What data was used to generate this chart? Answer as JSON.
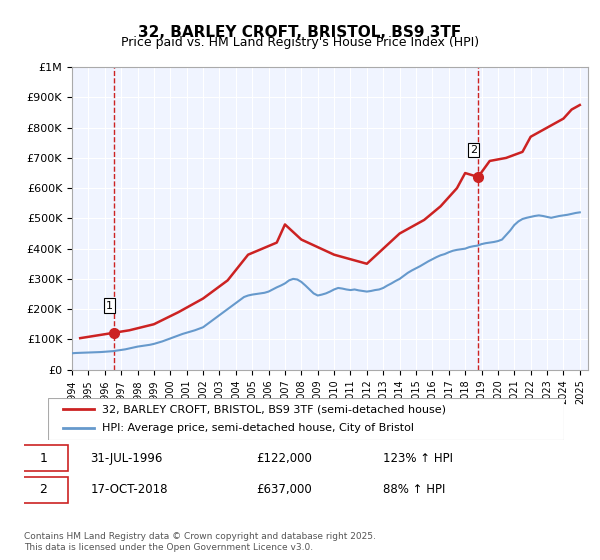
{
  "title": "32, BARLEY CROFT, BRISTOL, BS9 3TF",
  "subtitle": "Price paid vs. HM Land Registry's House Price Index (HPI)",
  "ylabel": "",
  "ylim": [
    0,
    1000000
  ],
  "yticks": [
    0,
    100000,
    200000,
    300000,
    400000,
    500000,
    600000,
    700000,
    800000,
    900000,
    1000000
  ],
  "ytick_labels": [
    "£0",
    "£100K",
    "£200K",
    "£300K",
    "£400K",
    "£500K",
    "£600K",
    "£700K",
    "£800K",
    "£900K",
    "£1M"
  ],
  "xlim_start": 1994.0,
  "xlim_end": 2025.5,
  "xticks": [
    1994,
    1995,
    1996,
    1997,
    1998,
    1999,
    2000,
    2001,
    2002,
    2003,
    2004,
    2005,
    2006,
    2007,
    2008,
    2009,
    2010,
    2011,
    2012,
    2013,
    2014,
    2015,
    2016,
    2017,
    2018,
    2019,
    2020,
    2021,
    2022,
    2023,
    2024,
    2025
  ],
  "hpi_color": "#6699cc",
  "price_color": "#cc2222",
  "marker_color": "#cc2222",
  "vline_color": "#cc2222",
  "background_color": "#f0f4ff",
  "legend_label_price": "32, BARLEY CROFT, BRISTOL, BS9 3TF (semi-detached house)",
  "legend_label_hpi": "HPI: Average price, semi-detached house, City of Bristol",
  "annotation1_label": "1",
  "annotation1_date": "31-JUL-1996",
  "annotation1_price": "£122,000",
  "annotation1_hpi": "123% ↑ HPI",
  "annotation1_year": 1996.58,
  "annotation1_value": 122000,
  "annotation2_label": "2",
  "annotation2_date": "17-OCT-2018",
  "annotation2_price": "£637,000",
  "annotation2_hpi": "88% ↑ HPI",
  "annotation2_year": 2018.79,
  "annotation2_value": 637000,
  "footnote": "Contains HM Land Registry data © Crown copyright and database right 2025.\nThis data is licensed under the Open Government Licence v3.0.",
  "hpi_data": {
    "years": [
      1994.0,
      1994.25,
      1994.5,
      1994.75,
      1995.0,
      1995.25,
      1995.5,
      1995.75,
      1996.0,
      1996.25,
      1996.5,
      1996.75,
      1997.0,
      1997.25,
      1997.5,
      1997.75,
      1998.0,
      1998.25,
      1998.5,
      1998.75,
      1999.0,
      1999.25,
      1999.5,
      1999.75,
      2000.0,
      2000.25,
      2000.5,
      2000.75,
      2001.0,
      2001.25,
      2001.5,
      2001.75,
      2002.0,
      2002.25,
      2002.5,
      2002.75,
      2003.0,
      2003.25,
      2003.5,
      2003.75,
      2004.0,
      2004.25,
      2004.5,
      2004.75,
      2005.0,
      2005.25,
      2005.5,
      2005.75,
      2006.0,
      2006.25,
      2006.5,
      2006.75,
      2007.0,
      2007.25,
      2007.5,
      2007.75,
      2008.0,
      2008.25,
      2008.5,
      2008.75,
      2009.0,
      2009.25,
      2009.5,
      2009.75,
      2010.0,
      2010.25,
      2010.5,
      2010.75,
      2011.0,
      2011.25,
      2011.5,
      2011.75,
      2012.0,
      2012.25,
      2012.5,
      2012.75,
      2013.0,
      2013.25,
      2013.5,
      2013.75,
      2014.0,
      2014.25,
      2014.5,
      2014.75,
      2015.0,
      2015.25,
      2015.5,
      2015.75,
      2016.0,
      2016.25,
      2016.5,
      2016.75,
      2017.0,
      2017.25,
      2017.5,
      2017.75,
      2018.0,
      2018.25,
      2018.5,
      2018.75,
      2019.0,
      2019.25,
      2019.5,
      2019.75,
      2020.0,
      2020.25,
      2020.5,
      2020.75,
      2021.0,
      2021.25,
      2021.5,
      2021.75,
      2022.0,
      2022.25,
      2022.5,
      2022.75,
      2023.0,
      2023.25,
      2023.5,
      2023.75,
      2024.0,
      2024.25,
      2024.5,
      2024.75,
      2025.0
    ],
    "values": [
      54000,
      55000,
      55500,
      56000,
      56500,
      57000,
      57500,
      58000,
      59000,
      60000,
      61000,
      63000,
      65000,
      67000,
      70000,
      73000,
      76000,
      78000,
      80000,
      82000,
      85000,
      89000,
      93000,
      98000,
      103000,
      108000,
      113000,
      118000,
      122000,
      126000,
      130000,
      135000,
      140000,
      150000,
      160000,
      170000,
      180000,
      190000,
      200000,
      210000,
      220000,
      230000,
      240000,
      245000,
      248000,
      250000,
      252000,
      254000,
      258000,
      265000,
      272000,
      278000,
      285000,
      295000,
      300000,
      298000,
      290000,
      278000,
      265000,
      252000,
      245000,
      248000,
      252000,
      258000,
      265000,
      270000,
      268000,
      265000,
      263000,
      265000,
      262000,
      260000,
      258000,
      260000,
      263000,
      265000,
      270000,
      278000,
      285000,
      293000,
      300000,
      310000,
      320000,
      328000,
      335000,
      342000,
      350000,
      358000,
      365000,
      372000,
      378000,
      382000,
      388000,
      393000,
      396000,
      398000,
      400000,
      405000,
      408000,
      410000,
      415000,
      418000,
      420000,
      422000,
      425000,
      430000,
      445000,
      460000,
      478000,
      490000,
      498000,
      502000,
      505000,
      508000,
      510000,
      508000,
      505000,
      502000,
      505000,
      508000,
      510000,
      512000,
      515000,
      518000,
      520000
    ]
  },
  "price_data": {
    "years": [
      1994.5,
      1996.58,
      1997.5,
      1999.0,
      2000.5,
      2002.0,
      2003.5,
      2004.75,
      2006.5,
      2007.0,
      2008.0,
      2010.0,
      2012.0,
      2014.0,
      2015.5,
      2016.5,
      2017.5,
      2018.0,
      2018.79,
      2019.5,
      2020.5,
      2021.5,
      2022.0,
      2023.0,
      2024.0,
      2024.5,
      2025.0
    ],
    "values": [
      104000,
      122000,
      130000,
      150000,
      190000,
      235000,
      295000,
      380000,
      420000,
      480000,
      430000,
      380000,
      350000,
      450000,
      495000,
      540000,
      600000,
      650000,
      637000,
      690000,
      700000,
      720000,
      770000,
      800000,
      830000,
      860000,
      875000
    ]
  }
}
